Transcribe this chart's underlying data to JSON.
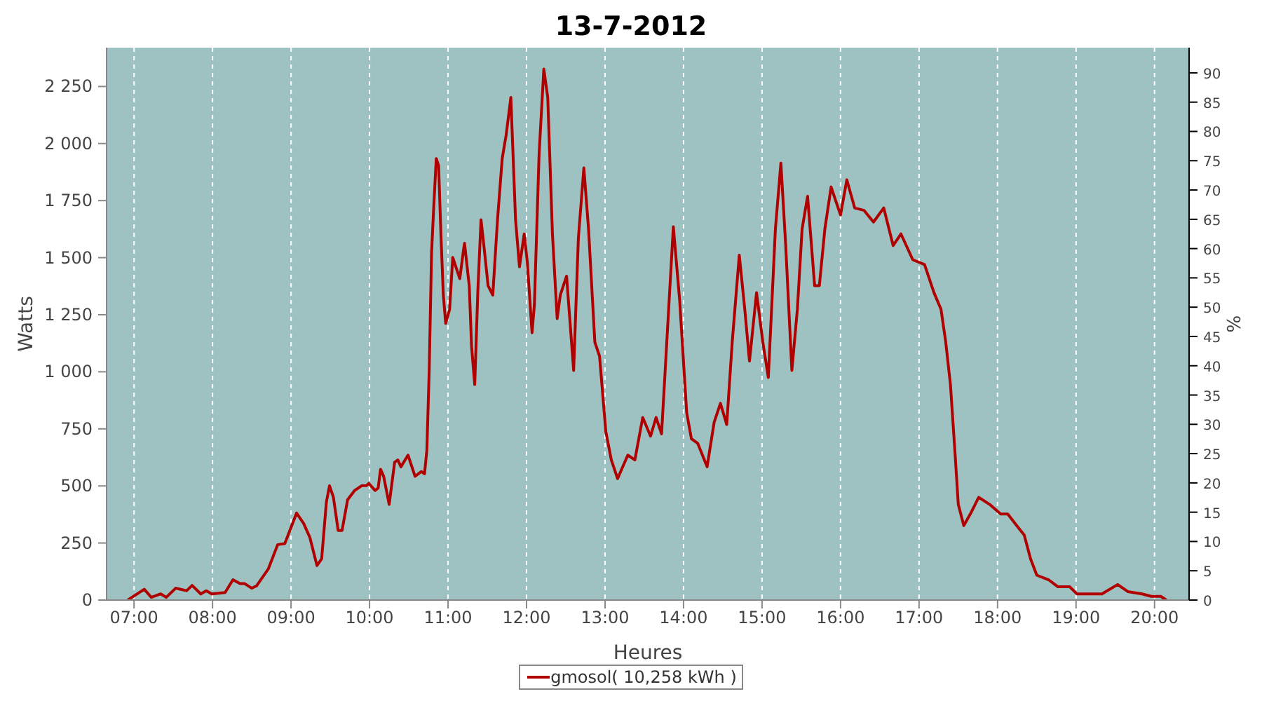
{
  "chart_data": {
    "type": "line",
    "title": "13-7-2012",
    "xlabel": "Heures",
    "ylabel": "Watts",
    "y2label": "%",
    "x": [
      6.92,
      7.13,
      7.22,
      7.34,
      7.41,
      7.53,
      7.67,
      7.74,
      7.85,
      7.92,
      7.99,
      8.16,
      8.26,
      8.35,
      8.41,
      8.5,
      8.56,
      8.71,
      8.83,
      8.92,
      9.07,
      9.16,
      9.24,
      9.33,
      9.39,
      9.45,
      9.49,
      9.54,
      9.6,
      9.65,
      9.72,
      9.81,
      9.9,
      9.96,
      9.99,
      10.07,
      10.11,
      10.14,
      10.18,
      10.25,
      10.32,
      10.36,
      10.4,
      10.49,
      10.58,
      10.66,
      10.7,
      10.73,
      10.76,
      10.79,
      10.82,
      10.85,
      10.88,
      10.91,
      10.94,
      10.97,
      11.02,
      11.06,
      11.09,
      11.15,
      11.2,
      11.21,
      11.27,
      11.3,
      11.34,
      11.38,
      11.42,
      11.46,
      11.51,
      11.57,
      11.63,
      11.69,
      11.74,
      11.8,
      11.86,
      11.91,
      11.97,
      12.01,
      12.07,
      12.1,
      12.16,
      12.22,
      12.27,
      12.33,
      12.39,
      12.43,
      12.51,
      12.6,
      12.66,
      12.73,
      12.79,
      12.87,
      12.93,
      13.01,
      13.08,
      13.16,
      13.29,
      13.38,
      13.48,
      13.58,
      13.65,
      13.72,
      13.8,
      13.87,
      13.95,
      14.04,
      14.1,
      14.18,
      14.3,
      14.39,
      14.47,
      14.55,
      14.62,
      14.71,
      14.78,
      14.84,
      14.93,
      15.01,
      15.08,
      15.17,
      15.24,
      15.3,
      15.38,
      15.45,
      15.51,
      15.58,
      15.67,
      15.73,
      15.8,
      15.88,
      15.94,
      16.0,
      16.08,
      16.18,
      16.3,
      16.42,
      16.55,
      16.67,
      16.77,
      16.92,
      17.07,
      17.19,
      17.28,
      17.34,
      17.4,
      17.46,
      17.5,
      17.57,
      17.67,
      17.76,
      17.9,
      18.04,
      18.13,
      18.27,
      18.34,
      18.42,
      18.5,
      18.65,
      18.77,
      18.92,
      19.01,
      19.33,
      19.53,
      19.66,
      19.84,
      19.96,
      20.08,
      20.15
    ],
    "series": [
      {
        "name": "gmosol( 10,258 kWh )",
        "color": "#b00000",
        "values": [
          0,
          47,
          12,
          27,
          12,
          52,
          41,
          64,
          27,
          41,
          27,
          33,
          89,
          72,
          72,
          52,
          62,
          136,
          243,
          247,
          381,
          336,
          274,
          151,
          181,
          429,
          501,
          450,
          305,
          305,
          439,
          480,
          501,
          501,
          511,
          480,
          491,
          573,
          542,
          419,
          604,
          614,
          584,
          635,
          542,
          563,
          553,
          656,
          1006,
          1522,
          1738,
          1934,
          1903,
          1594,
          1336,
          1212,
          1274,
          1501,
          1470,
          1408,
          1542,
          1563,
          1377,
          1109,
          944,
          1357,
          1666,
          1542,
          1377,
          1336,
          1666,
          1934,
          2037,
          2202,
          1666,
          1460,
          1604,
          1481,
          1171,
          1295,
          1955,
          2326,
          2202,
          1604,
          1233,
          1336,
          1419,
          1006,
          1584,
          1893,
          1625,
          1130,
          1068,
          738,
          614,
          532,
          635,
          614,
          800,
          718,
          800,
          728,
          1212,
          1635,
          1316,
          821,
          707,
          687,
          584,
          779,
          862,
          769,
          1130,
          1511,
          1274,
          1047,
          1347,
          1130,
          975,
          1625,
          1914,
          1563,
          1006,
          1274,
          1625,
          1769,
          1377,
          1377,
          1625,
          1810,
          1748,
          1687,
          1841,
          1718,
          1707,
          1656,
          1718,
          1553,
          1604,
          1491,
          1470,
          1347,
          1274,
          1130,
          944,
          635,
          419,
          326,
          388,
          450,
          419,
          377,
          377,
          315,
          285,
          181,
          109,
          89,
          58,
          58,
          27,
          27,
          68,
          37,
          27,
          16,
          16,
          0
        ]
      }
    ],
    "xlim": [
      6.65,
      20.44
    ],
    "xticks": [
      {
        "value": 7,
        "label": "07:00"
      },
      {
        "value": 8,
        "label": "08:00"
      },
      {
        "value": 9,
        "label": "09:00"
      },
      {
        "value": 10,
        "label": "10:00"
      },
      {
        "value": 11,
        "label": "11:00"
      },
      {
        "value": 12,
        "label": "12:00"
      },
      {
        "value": 13,
        "label": "13:00"
      },
      {
        "value": 14,
        "label": "14:00"
      },
      {
        "value": 15,
        "label": "15:00"
      },
      {
        "value": 16,
        "label": "16:00"
      },
      {
        "value": 17,
        "label": "17:00"
      },
      {
        "value": 18,
        "label": "18:00"
      },
      {
        "value": 19,
        "label": "19:00"
      },
      {
        "value": 20,
        "label": "20:00"
      }
    ],
    "ylim": [
      0,
      2420
    ],
    "yticks": [
      0,
      250,
      500,
      750,
      {
        "value": 1000,
        "label": "1 000"
      },
      {
        "value": 1250,
        "label": "1 250"
      },
      {
        "value": 1500,
        "label": "1 500"
      },
      {
        "value": 1750,
        "label": "1 750"
      },
      {
        "value": 2000,
        "label": "2 000"
      },
      {
        "value": 2250,
        "label": "2 250"
      }
    ],
    "y2lim": [
      0,
      94.3
    ],
    "y2ticks": [
      0,
      5,
      10,
      15,
      20,
      25,
      30,
      35,
      40,
      45,
      50,
      55,
      60,
      65,
      70,
      75,
      80,
      85,
      90
    ],
    "grid": true,
    "legend": "bottom",
    "marker": "none",
    "line_style": "solid"
  }
}
